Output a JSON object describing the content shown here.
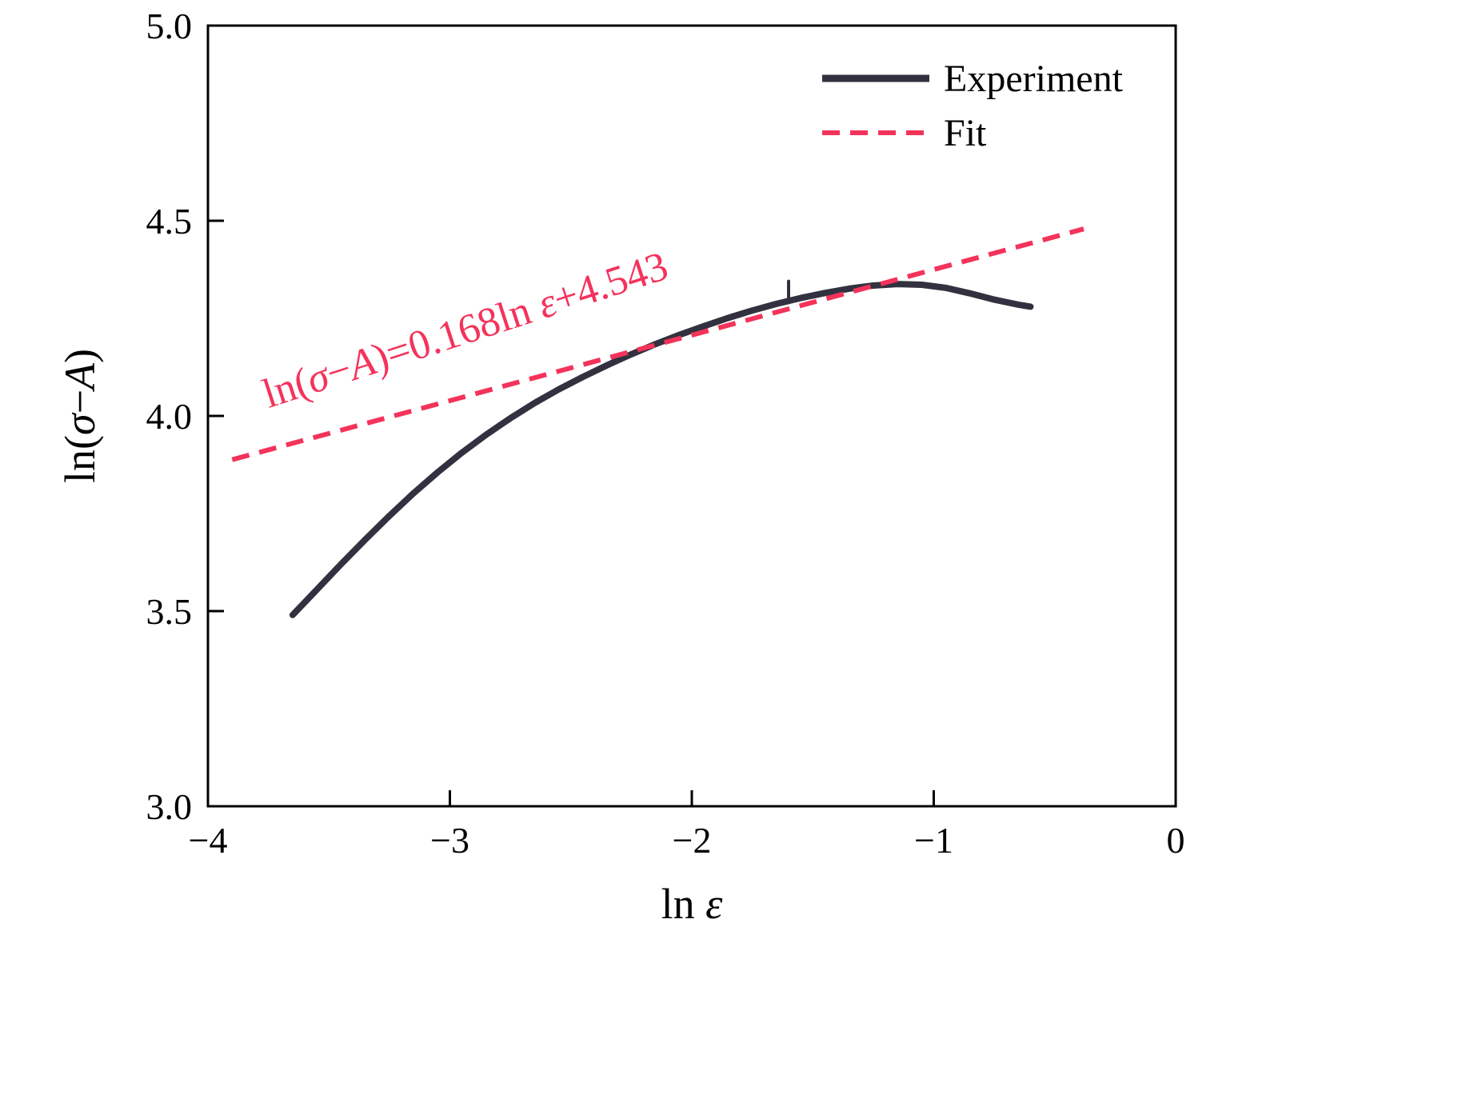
{
  "figure": {
    "background": "#ffffff",
    "frame_color": "#000000",
    "text_color": "#000000"
  },
  "chart_data": {
    "type": "line",
    "title": "",
    "xlabel": "ln ε",
    "xlabel_segments": [
      {
        "t": "ln ",
        "i": false
      },
      {
        "t": "ε",
        "i": true
      }
    ],
    "ylabel": "ln(σ−A)",
    "ylabel_segments": [
      {
        "t": "ln(",
        "i": false
      },
      {
        "t": "σ",
        "i": true
      },
      {
        "t": "−",
        "i": false
      },
      {
        "t": "A",
        "i": true
      },
      {
        "t": ")",
        "i": false
      }
    ],
    "xlim": [
      -4,
      0
    ],
    "ylim": [
      3.0,
      5.0
    ],
    "grid": false,
    "xticks": [
      {
        "v": -4,
        "label": "−4"
      },
      {
        "v": -3,
        "label": "−3"
      },
      {
        "v": -2,
        "label": "−2"
      },
      {
        "v": -1,
        "label": "−1"
      },
      {
        "v": 0,
        "label": "0"
      }
    ],
    "yticks": [
      {
        "v": 3.0,
        "label": "3.0"
      },
      {
        "v": 3.5,
        "label": "3.5"
      },
      {
        "v": 4.0,
        "label": "4.0"
      },
      {
        "v": 4.5,
        "label": "4.5"
      },
      {
        "v": 5.0,
        "label": "5.0"
      }
    ],
    "series": [
      {
        "name": "Experiment",
        "color": "#32313f",
        "width": 8,
        "dash": null,
        "points": [
          [
            -3.65,
            3.49
          ],
          [
            -3.55,
            3.555
          ],
          [
            -3.45,
            3.62
          ],
          [
            -3.35,
            3.683
          ],
          [
            -3.25,
            3.744
          ],
          [
            -3.15,
            3.802
          ],
          [
            -3.05,
            3.856
          ],
          [
            -2.95,
            3.906
          ],
          [
            -2.85,
            3.952
          ],
          [
            -2.75,
            3.994
          ],
          [
            -2.65,
            4.033
          ],
          [
            -2.55,
            4.068
          ],
          [
            -2.45,
            4.1
          ],
          [
            -2.35,
            4.13
          ],
          [
            -2.25,
            4.158
          ],
          [
            -2.15,
            4.184
          ],
          [
            -2.05,
            4.208
          ],
          [
            -1.95,
            4.23
          ],
          [
            -1.85,
            4.251
          ],
          [
            -1.75,
            4.27
          ],
          [
            -1.65,
            4.287
          ],
          [
            -1.55,
            4.302
          ],
          [
            -1.45,
            4.315
          ],
          [
            -1.35,
            4.326
          ],
          [
            -1.25,
            4.334
          ],
          [
            -1.15,
            4.338
          ],
          [
            -1.05,
            4.336
          ],
          [
            -0.95,
            4.328
          ],
          [
            -0.85,
            4.314
          ],
          [
            -0.75,
            4.298
          ],
          [
            -0.65,
            4.285
          ],
          [
            -0.6,
            4.28
          ]
        ]
      },
      {
        "name": "Experiment-artifact",
        "color": "#32313f",
        "width": 4,
        "dash": null,
        "points": [
          [
            -1.6,
            4.345
          ],
          [
            -1.6,
            4.29
          ]
        ]
      },
      {
        "name": "Fit",
        "color": "#f4335b",
        "width": 6,
        "dash": [
          22,
          13
        ],
        "points": [
          [
            -3.9,
            3.888
          ],
          [
            -0.38,
            4.479
          ]
        ]
      }
    ],
    "fit_equation": {
      "slope": 0.168,
      "intercept": 4.543
    },
    "legend": {
      "position": "top-right",
      "entries": [
        {
          "label": "Experiment",
          "color": "#32313f",
          "dash": null,
          "sample_width": 9
        },
        {
          "label": "Fit",
          "color": "#f4335b",
          "dash": [
            22,
            13
          ],
          "sample_width": 6
        }
      ]
    },
    "annotation": {
      "text": "ln(σ−A)=0.168ln ε+4.543",
      "segments": [
        {
          "t": "ln(",
          "i": false
        },
        {
          "t": "σ",
          "i": true
        },
        {
          "t": "−",
          "i": false
        },
        {
          "t": "A",
          "i": true
        },
        {
          "t": ")=0.168ln ",
          "i": false
        },
        {
          "t": "ε",
          "i": true
        },
        {
          "t": "+4.543",
          "i": false
        }
      ],
      "color": "#f4335b",
      "x": -3.75,
      "y": 4.02,
      "rotation": -18
    }
  }
}
